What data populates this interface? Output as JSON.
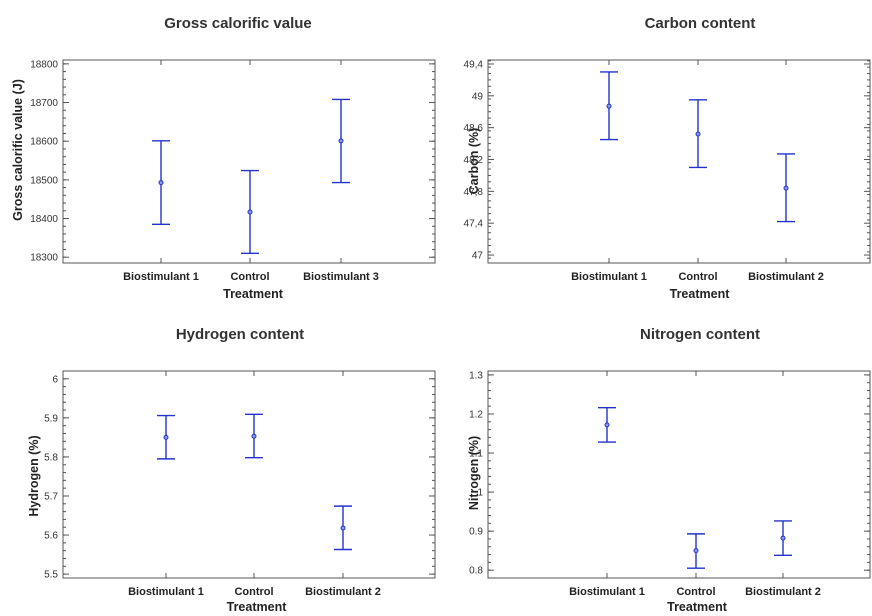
{
  "chart_data": [
    {
      "type": "scatter",
      "title": "Gross calorific value",
      "xlabel": "Treatment",
      "ylabel": "Gross calorific value (J)",
      "categories": [
        "Biostimulant 1",
        "Control",
        "Biostimulant 3"
      ],
      "mean": [
        18493,
        18417,
        18601
      ],
      "lower": [
        18385,
        18310,
        18493
      ],
      "upper": [
        18601,
        18524,
        18708
      ],
      "ylim": [
        18285,
        18810
      ],
      "yticks": [
        "18300",
        "18400",
        "18500",
        "18600",
        "18700",
        "18800"
      ],
      "ytick_values": [
        18300,
        18400,
        18500,
        18600,
        18700,
        18800
      ]
    },
    {
      "type": "scatter",
      "title": "Carbon content",
      "xlabel": "Treatment",
      "ylabel": "Carbon (%)",
      "categories": [
        "Biostimulant 1",
        "Control",
        "Biostimulant 2"
      ],
      "mean": [
        48.87,
        48.52,
        47.84
      ],
      "lower": [
        48.45,
        48.1,
        47.42
      ],
      "upper": [
        49.3,
        48.95,
        48.27
      ],
      "ylim": [
        46.9,
        49.45
      ],
      "yticks": [
        "47",
        "47,4",
        "47,8",
        "48,2",
        "48,6",
        "49",
        "49,4"
      ],
      "ytick_values": [
        47,
        47.4,
        47.8,
        48.2,
        48.6,
        49,
        49.4
      ]
    },
    {
      "type": "scatter",
      "title": "Hydrogen content",
      "xlabel": "Treatment",
      "ylabel": "Hydrogen (%)",
      "categories": [
        "Biostimulant 1",
        "Control",
        "Biostimulant 2"
      ],
      "mean": [
        5.85,
        5.853,
        5.618
      ],
      "lower": [
        5.795,
        5.798,
        5.563
      ],
      "upper": [
        5.906,
        5.909,
        5.674
      ],
      "ylim": [
        5.49,
        6.02
      ],
      "yticks": [
        "5.5",
        "5.6",
        "5.7",
        "5.8",
        "5.9",
        "6"
      ],
      "ytick_values": [
        5.5,
        5.6,
        5.7,
        5.8,
        5.9,
        6
      ]
    },
    {
      "type": "scatter",
      "title": "Nitrogen content",
      "xlabel": "Treatment",
      "ylabel": "Nitrogen (%)",
      "categories": [
        "Biostimulant 1",
        "Control",
        "Biostimulant 2"
      ],
      "mean": [
        1.172,
        0.85,
        0.882
      ],
      "lower": [
        1.128,
        0.805,
        0.838
      ],
      "upper": [
        1.216,
        0.893,
        0.926
      ],
      "ylim": [
        0.78,
        1.31
      ],
      "yticks": [
        "0.8",
        "0.9",
        "1",
        "1.1",
        "1.2",
        "1.3"
      ],
      "ytick_values": [
        0.8,
        0.9,
        1.0,
        1.1,
        1.2,
        1.3
      ]
    }
  ],
  "colors": {
    "error_bar": "#2233cc",
    "mean_marker": "#8899ee",
    "frame": "#555555"
  }
}
